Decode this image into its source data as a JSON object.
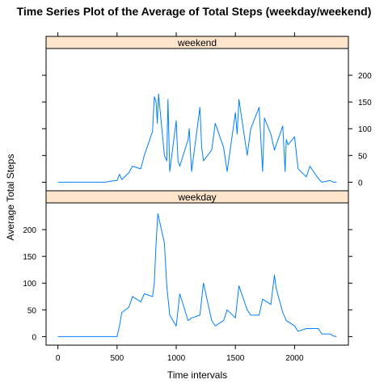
{
  "chart_data": {
    "type": "line",
    "title": "Time Series Plot of the Average of Total Steps (weekday/weekend)",
    "xlabel": "Time intervals",
    "ylabel": "Average Total Steps",
    "xlim": [
      -100,
      2455
    ],
    "ylim": [
      -16,
      250
    ],
    "x_ticks": [
      0,
      500,
      1000,
      1500,
      2000
    ],
    "x_tick_labels": [
      "0",
      "500",
      "1000",
      "1500",
      "2000"
    ],
    "y_ticks": [
      0,
      50,
      100,
      150,
      200
    ],
    "y_tick_labels": [
      "0",
      "50",
      "100",
      "150",
      "200"
    ],
    "colors": {
      "line": "#0080ff",
      "strip": "#ffe5cc"
    },
    "panels": [
      {
        "strip": "weekend",
        "x": [
          0,
          100,
          200,
          300,
          400,
          445,
          500,
          520,
          540,
          600,
          630,
          700,
          730,
          745,
          800,
          815,
          830,
          840,
          850,
          900,
          920,
          930,
          945,
          1000,
          1015,
          1030,
          1100,
          1110,
          1130,
          1200,
          1215,
          1230,
          1300,
          1330,
          1400,
          1430,
          1500,
          1515,
          1530,
          1600,
          1630,
          1700,
          1730,
          1745,
          1800,
          1830,
          1900,
          1920,
          1930,
          1945,
          2000,
          2030,
          2100,
          2130,
          2200,
          2230,
          2300,
          2330,
          2355
        ],
        "y": [
          0,
          0,
          0,
          0,
          0,
          2,
          3,
          15,
          5,
          18,
          30,
          25,
          50,
          60,
          95,
          160,
          150,
          110,
          165,
          50,
          40,
          155,
          20,
          115,
          40,
          30,
          80,
          100,
          20,
          140,
          65,
          40,
          60,
          110,
          65,
          20,
          130,
          90,
          155,
          50,
          100,
          140,
          20,
          120,
          90,
          60,
          105,
          20,
          80,
          70,
          85,
          25,
          10,
          30,
          7,
          0,
          3,
          0,
          0
        ]
      },
      {
        "strip": "weekday",
        "x": [
          0,
          100,
          200,
          300,
          400,
          500,
          520,
          540,
          600,
          630,
          700,
          730,
          800,
          815,
          830,
          845,
          900,
          920,
          945,
          1000,
          1030,
          1100,
          1130,
          1200,
          1215,
          1230,
          1300,
          1330,
          1400,
          1430,
          1500,
          1530,
          1600,
          1630,
          1700,
          1730,
          1800,
          1830,
          1845,
          1900,
          1930,
          2000,
          2030,
          2100,
          2130,
          2200,
          2230,
          2300,
          2330,
          2355
        ],
        "y": [
          0,
          0,
          0,
          0,
          0,
          0,
          20,
          45,
          55,
          75,
          65,
          80,
          75,
          100,
          175,
          230,
          175,
          95,
          40,
          20,
          80,
          30,
          35,
          40,
          70,
          100,
          30,
          20,
          30,
          50,
          35,
          95,
          50,
          40,
          40,
          70,
          60,
          115,
          90,
          45,
          30,
          20,
          10,
          15,
          15,
          15,
          5,
          5,
          1,
          0
        ]
      }
    ]
  }
}
